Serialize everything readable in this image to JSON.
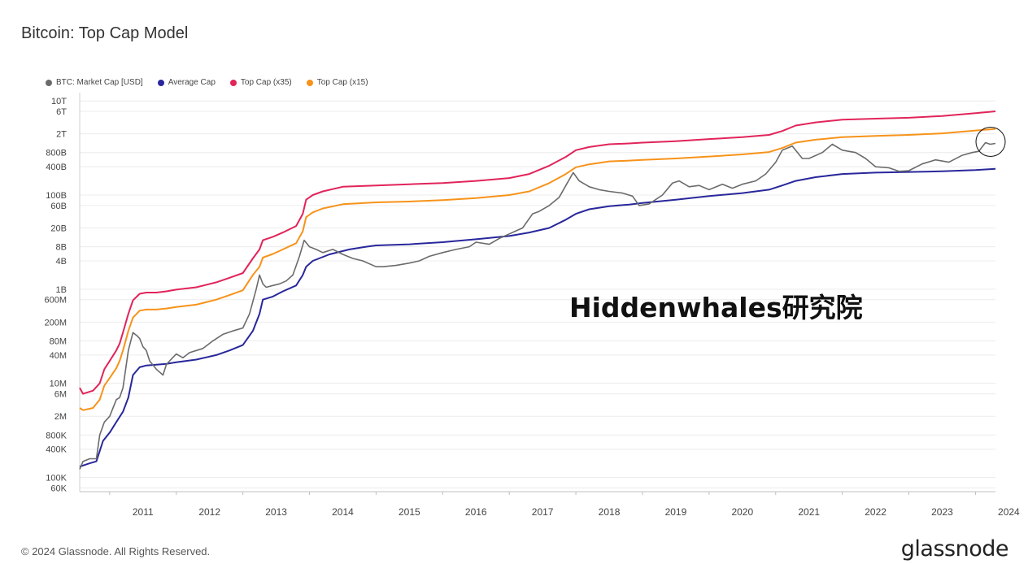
{
  "page": {
    "title": "Bitcoin: Top Cap Model",
    "watermark": "Hiddenwhales研究院",
    "footer": "© 2024 Glassnode. All Rights Reserved.",
    "brand": "glassnode"
  },
  "chart_data": {
    "type": "line",
    "yscale": "log",
    "grid": true,
    "legend_position": "top-left",
    "ylim": [
      50000,
      15000000000000
    ],
    "xlim": [
      2010.55,
      2024.3
    ],
    "x_ticks": [
      2011,
      2012,
      2013,
      2014,
      2015,
      2016,
      2017,
      2018,
      2019,
      2020,
      2021,
      2022,
      2023,
      2024
    ],
    "x_tick_labels": [
      "2011",
      "2012",
      "2013",
      "2014",
      "2015",
      "2016",
      "2017",
      "2018",
      "2019",
      "2020",
      "2021",
      "2022",
      "2023",
      "2024"
    ],
    "y_ticks": [
      60000,
      100000,
      400000,
      800000,
      2000000,
      6000000,
      10000000,
      40000000,
      80000000,
      200000000,
      600000000,
      1000000000,
      4000000000,
      8000000000,
      20000000000,
      60000000000,
      100000000000,
      400000000000,
      800000000000,
      2000000000000,
      6000000000000,
      10000000000000
    ],
    "y_tick_labels": [
      "60K",
      "100K",
      "400K",
      "800K",
      "2M",
      "6M",
      "10M",
      "40M",
      "80M",
      "200M",
      "600M",
      "1B",
      "4B",
      "8B",
      "20B",
      "60B",
      "100B",
      "400B",
      "800B",
      "2T",
      "6T",
      "10T"
    ],
    "series": [
      {
        "name": "BTC: Market Cap [USD]",
        "color": "#6b6b6b",
        "x": [
          2010.55,
          2010.6,
          2010.7,
          2010.8,
          2010.85,
          2010.92,
          2011.0,
          2011.1,
          2011.15,
          2011.2,
          2011.28,
          2011.35,
          2011.42,
          2011.45,
          2011.5,
          2011.55,
          2011.6,
          2011.7,
          2011.8,
          2011.85,
          2011.9,
          2012.0,
          2012.1,
          2012.2,
          2012.4,
          2012.55,
          2012.7,
          2012.85,
          2013.0,
          2013.1,
          2013.2,
          2013.25,
          2013.3,
          2013.35,
          2013.45,
          2013.55,
          2013.65,
          2013.75,
          2013.85,
          2013.92,
          2014.0,
          2014.1,
          2014.2,
          2014.35,
          2014.5,
          2014.65,
          2014.8,
          2015.0,
          2015.1,
          2015.3,
          2015.5,
          2015.65,
          2015.8,
          2016.0,
          2016.2,
          2016.4,
          2016.5,
          2016.7,
          2016.85,
          2017.0,
          2017.2,
          2017.35,
          2017.45,
          2017.6,
          2017.75,
          2017.85,
          2017.96,
          2018.05,
          2018.2,
          2018.35,
          2018.5,
          2018.7,
          2018.85,
          2018.95,
          2019.1,
          2019.3,
          2019.45,
          2019.55,
          2019.7,
          2019.85,
          2020.0,
          2020.2,
          2020.35,
          2020.5,
          2020.7,
          2020.85,
          2021.0,
          2021.1,
          2021.25,
          2021.4,
          2021.5,
          2021.7,
          2021.85,
          2022.0,
          2022.2,
          2022.35,
          2022.5,
          2022.7,
          2022.85,
          2023.0,
          2023.2,
          2023.4,
          2023.6,
          2023.8,
          2023.95,
          2024.05,
          2024.15,
          2024.22,
          2024.3
        ],
        "y": [
          150000,
          220000,
          250000,
          250000,
          800000,
          1500000,
          2000000,
          4500000,
          5000000,
          8000000,
          50000000,
          120000000,
          100000000,
          90000000,
          60000000,
          50000000,
          30000000,
          20000000,
          15000000,
          25000000,
          30000000,
          42000000,
          35000000,
          45000000,
          55000000,
          80000000,
          110000000,
          130000000,
          150000000,
          300000000,
          1000000000,
          2000000000,
          1300000000,
          1100000000,
          1200000000,
          1300000000,
          1500000000,
          2000000000,
          5000000000,
          11000000000,
          8000000000,
          7000000000,
          6000000000,
          7000000000,
          5500000000,
          4500000000,
          4000000000,
          3000000000,
          3000000000,
          3200000000,
          3600000000,
          4000000000,
          5000000000,
          6000000000,
          7000000000,
          8000000000,
          10000000000,
          9000000000,
          12000000000,
          15000000000,
          20000000000,
          40000000000,
          45000000000,
          60000000000,
          90000000000,
          160000000000,
          300000000000,
          200000000000,
          150000000000,
          130000000000,
          120000000000,
          110000000000,
          95000000000,
          60000000000,
          65000000000,
          100000000000,
          180000000000,
          200000000000,
          150000000000,
          160000000000,
          130000000000,
          170000000000,
          140000000000,
          170000000000,
          200000000000,
          280000000000,
          500000000000,
          900000000000,
          1100000000000,
          600000000000,
          600000000000,
          800000000000,
          1200000000000,
          900000000000,
          800000000000,
          600000000000,
          400000000000,
          380000000000,
          320000000000,
          330000000000,
          460000000000,
          560000000000,
          500000000000,
          700000000000,
          800000000000,
          850000000000,
          1300000000000,
          1200000000000,
          1250000000000
        ]
      },
      {
        "name": "Average Cap",
        "color": "#28279b",
        "x": [
          2010.55,
          2010.7,
          2010.8,
          2010.9,
          2011.0,
          2011.1,
          2011.2,
          2011.28,
          2011.35,
          2011.45,
          2011.55,
          2011.7,
          2011.85,
          2012.0,
          2012.3,
          2012.6,
          2012.8,
          2013.0,
          2013.15,
          2013.25,
          2013.3,
          2013.45,
          2013.6,
          2013.8,
          2013.9,
          2013.95,
          2014.05,
          2014.3,
          2014.6,
          2014.85,
          2015.0,
          2015.5,
          2016.0,
          2016.5,
          2017.0,
          2017.3,
          2017.6,
          2017.85,
          2018.0,
          2018.2,
          2018.5,
          2018.8,
          2019.0,
          2019.5,
          2020.0,
          2020.5,
          2020.9,
          2021.1,
          2021.3,
          2021.6,
          2022.0,
          2022.5,
          2023.0,
          2023.5,
          2024.0,
          2024.3
        ],
        "y": [
          170000,
          200000,
          220000,
          600000,
          900000,
          1500000,
          2500000,
          5000000,
          15000000,
          22000000,
          24000000,
          25000000,
          26000000,
          28000000,
          32000000,
          40000000,
          50000000,
          65000000,
          130000000,
          300000000,
          600000000,
          700000000,
          900000000,
          1200000000,
          2000000000,
          3000000000,
          4000000000,
          5500000000,
          7000000000,
          8000000000,
          8500000000,
          9000000000,
          10000000000,
          11500000000,
          13500000000,
          16000000000,
          20000000000,
          30000000000,
          40000000000,
          50000000000,
          58000000000,
          63000000000,
          68000000000,
          80000000000,
          95000000000,
          110000000000,
          130000000000,
          160000000000,
          200000000000,
          240000000000,
          280000000000,
          300000000000,
          310000000000,
          320000000000,
          340000000000,
          360000000000
        ]
      },
      {
        "name": "Top Cap (x35)",
        "color": "#e1245a",
        "x": [
          2010.55,
          2010.6,
          2010.75,
          2010.85,
          2010.92,
          2011.0,
          2011.1,
          2011.15,
          2011.2,
          2011.28,
          2011.35,
          2011.45,
          2011.55,
          2011.7,
          2011.85,
          2012.0,
          2012.3,
          2012.6,
          2012.8,
          2013.0,
          2013.15,
          2013.25,
          2013.3,
          2013.45,
          2013.6,
          2013.8,
          2013.9,
          2013.95,
          2014.05,
          2014.2,
          2014.5,
          2015.0,
          2015.5,
          2016.0,
          2016.5,
          2017.0,
          2017.3,
          2017.6,
          2017.85,
          2018.0,
          2018.2,
          2018.5,
          2018.8,
          2019.0,
          2019.5,
          2020.0,
          2020.5,
          2020.9,
          2021.1,
          2021.3,
          2021.6,
          2022.0,
          2022.5,
          2023.0,
          2023.5,
          2024.0,
          2024.3
        ],
        "y": [
          8000000,
          6000000,
          7000000,
          10000000,
          20000000,
          30000000,
          50000000,
          70000000,
          120000000,
          300000000,
          580000000,
          800000000,
          850000000,
          850000000,
          900000000,
          980000000,
          1100000000,
          1400000000,
          1750000000,
          2200000000,
          4500000000,
          7000000000,
          11000000000,
          13000000000,
          16000000000,
          22000000000,
          40000000000,
          80000000000,
          100000000000,
          120000000000,
          150000000000,
          160000000000,
          170000000000,
          180000000000,
          200000000000,
          230000000000,
          280000000000,
          420000000000,
          650000000000,
          900000000000,
          1050000000000,
          1200000000000,
          1250000000000,
          1300000000000,
          1400000000000,
          1550000000000,
          1700000000000,
          1900000000000,
          2300000000000,
          3000000000000,
          3500000000000,
          4000000000000,
          4200000000000,
          4400000000000,
          4800000000000,
          5500000000000,
          6000000000000
        ]
      },
      {
        "name": "Top Cap (x15)",
        "color": "#f7931a",
        "x": [
          2010.55,
          2010.6,
          2010.75,
          2010.85,
          2010.92,
          2011.0,
          2011.1,
          2011.15,
          2011.2,
          2011.28,
          2011.35,
          2011.45,
          2011.55,
          2011.7,
          2011.85,
          2012.0,
          2012.3,
          2012.6,
          2012.8,
          2013.0,
          2013.15,
          2013.25,
          2013.3,
          2013.45,
          2013.6,
          2013.8,
          2013.9,
          2013.95,
          2014.05,
          2014.2,
          2014.5,
          2015.0,
          2015.5,
          2016.0,
          2016.5,
          2017.0,
          2017.3,
          2017.6,
          2017.85,
          2018.0,
          2018.2,
          2018.5,
          2018.8,
          2019.0,
          2019.5,
          2020.0,
          2020.5,
          2020.9,
          2021.1,
          2021.3,
          2021.6,
          2022.0,
          2022.5,
          2023.0,
          2023.5,
          2024.0,
          2024.3
        ],
        "y": [
          3000000,
          2700000,
          3000000,
          4500000,
          9000000,
          13000000,
          21000000,
          30000000,
          50000000,
          130000000,
          250000000,
          350000000,
          370000000,
          370000000,
          390000000,
          420000000,
          470000000,
          600000000,
          750000000,
          950000000,
          2000000000,
          3000000000,
          4700000000,
          5600000000,
          7000000000,
          9500000000,
          17000000000,
          34000000000,
          43000000000,
          52000000000,
          64000000000,
          70000000000,
          73000000000,
          78000000000,
          86000000000,
          100000000000,
          120000000000,
          180000000000,
          280000000000,
          390000000000,
          450000000000,
          520000000000,
          540000000000,
          560000000000,
          600000000000,
          660000000000,
          730000000000,
          820000000000,
          1000000000000,
          1300000000000,
          1500000000000,
          1700000000000,
          1800000000000,
          1900000000000,
          2050000000000,
          2350000000000,
          2550000000000
        ]
      }
    ]
  }
}
